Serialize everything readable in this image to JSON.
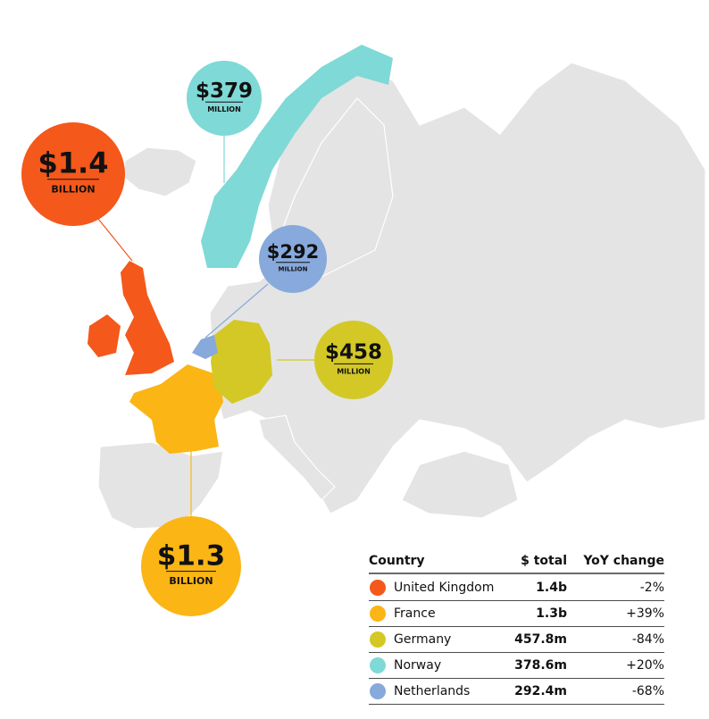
{
  "callouts": [
    {
      "amount": "$1.4",
      "unit": "BILLION",
      "color": "#f4581a"
    },
    {
      "amount": "$379",
      "unit": "MILLION",
      "color": "#7fd9d6"
    },
    {
      "amount": "$292",
      "unit": "MILLION",
      "color": "#87a9dc"
    },
    {
      "amount": "$458",
      "unit": "MILLION",
      "color": "#d3c826"
    },
    {
      "amount": "$1.3",
      "unit": "BILLION",
      "color": "#fbb515"
    }
  ],
  "table": {
    "header": [
      "Country",
      "$ total",
      "YoY change"
    ],
    "rows": [
      {
        "country": "United Kingdom",
        "total": "1.4b",
        "change": "-2%",
        "color": "#f4581a"
      },
      {
        "country": "France",
        "total": "1.3b",
        "change": "+39%",
        "color": "#fbb515"
      },
      {
        "country": "Germany",
        "total": "457.8m",
        "change": "-84%",
        "color": "#d3c826"
      },
      {
        "country": "Norway",
        "total": "378.6m",
        "change": "+20%",
        "color": "#7fd9d6"
      },
      {
        "country": "Netherlands",
        "total": "292.4m",
        "change": "-68%",
        "color": "#87a9dc"
      }
    ]
  }
}
